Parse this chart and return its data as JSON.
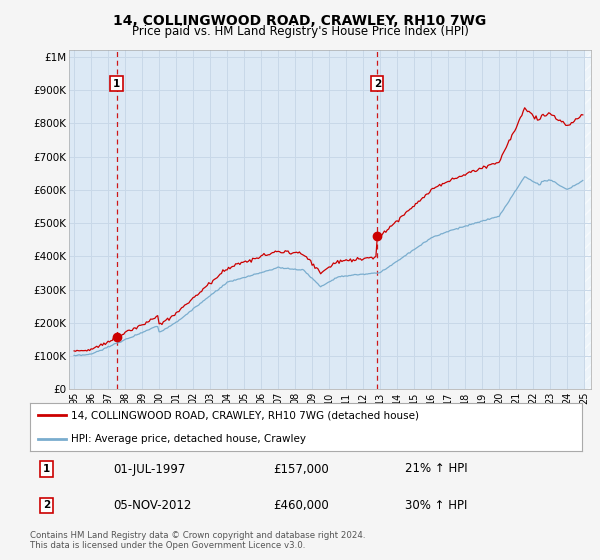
{
  "title": "14, COLLINGWOOD ROAD, CRAWLEY, RH10 7WG",
  "subtitle": "Price paid vs. HM Land Registry's House Price Index (HPI)",
  "legend_line1": "14, COLLINGWOOD ROAD, CRAWLEY, RH10 7WG (detached house)",
  "legend_line2": "HPI: Average price, detached house, Crawley",
  "sale1_date": "01-JUL-1997",
  "sale1_price": 157000,
  "sale1_hpi_pct": "21% ↑ HPI",
  "sale1_year": 1997.5,
  "sale2_date": "05-NOV-2012",
  "sale2_price": 460000,
  "sale2_hpi_pct": "30% ↑ HPI",
  "sale2_year": 2012.83,
  "footer": "Contains HM Land Registry data © Crown copyright and database right 2024.\nThis data is licensed under the Open Government Licence v3.0.",
  "fig_bg_color": "#f5f5f5",
  "plot_bg_color": "#dce9f5",
  "line_color_red": "#cc0000",
  "line_color_blue": "#7aadce",
  "grid_color": "#c8d8e8",
  "ylim": [
    0,
    1000000
  ],
  "yticks": [
    0,
    100000,
    200000,
    300000,
    400000,
    500000,
    600000,
    700000,
    800000,
    900000,
    1000000
  ],
  "ytick_labels": [
    "£0",
    "£100K",
    "£200K",
    "£300K",
    "£400K",
    "£500K",
    "£600K",
    "£700K",
    "£800K",
    "£900K",
    "£1M"
  ]
}
